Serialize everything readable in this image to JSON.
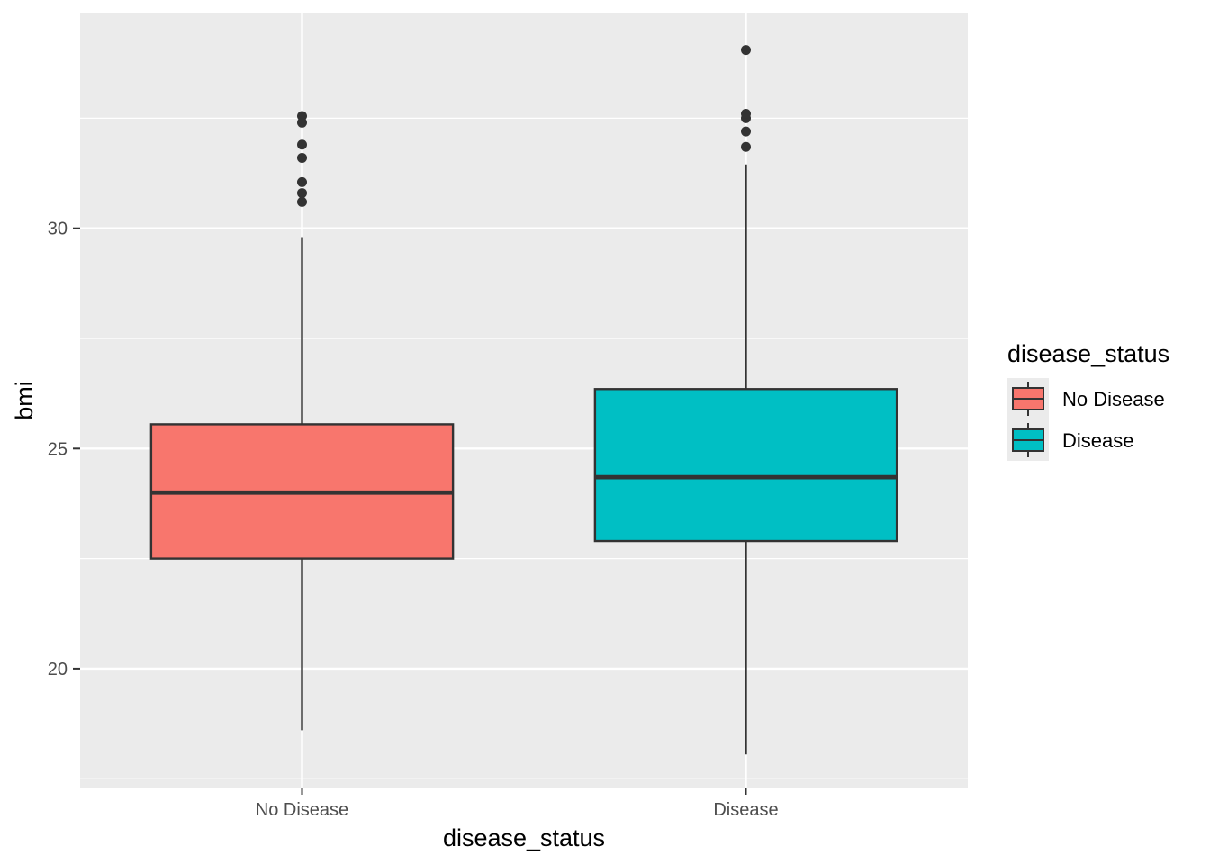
{
  "chart_data": {
    "type": "boxplot",
    "title": "",
    "xlabel": "disease_status",
    "ylabel": "bmi",
    "ylim": [
      17.3,
      34.9
    ],
    "yticks": [
      20,
      25,
      30
    ],
    "categories": [
      "No Disease",
      "Disease"
    ],
    "series": [
      {
        "name": "No Disease",
        "color": "#F8766D",
        "lower_whisker": 18.6,
        "q1": 22.5,
        "median": 24.0,
        "q3": 25.55,
        "upper_whisker": 29.8,
        "outliers": [
          30.6,
          30.8,
          31.05,
          31.6,
          31.9,
          32.4,
          32.55
        ]
      },
      {
        "name": "Disease",
        "color": "#00BFC4",
        "lower_whisker": 18.05,
        "q1": 22.9,
        "median": 24.35,
        "q3": 26.35,
        "upper_whisker": 31.45,
        "outliers": [
          31.85,
          32.2,
          32.5,
          32.6,
          34.05
        ]
      }
    ],
    "legend": {
      "title": "disease_status",
      "position": "right",
      "items": [
        "No Disease",
        "Disease"
      ]
    },
    "colors": {
      "panel_bg": "#EBEBEB",
      "grid": "#FFFFFF",
      "ink": "#333333"
    }
  }
}
